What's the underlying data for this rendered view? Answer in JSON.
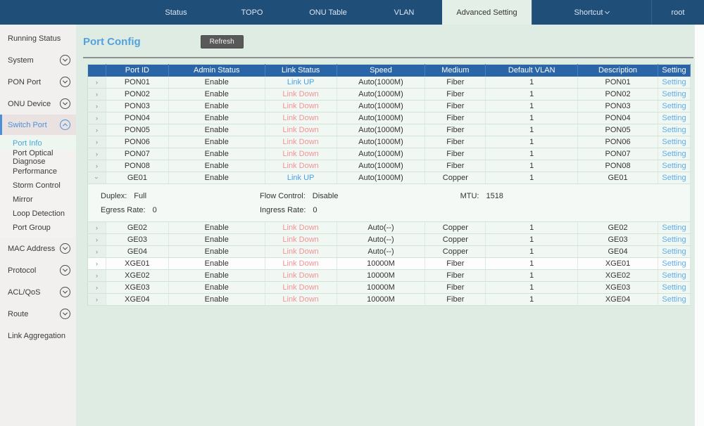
{
  "nav": {
    "tabs": [
      {
        "label": "Status",
        "active": false
      },
      {
        "label": "TOPO",
        "active": false
      },
      {
        "label": "ONU Table",
        "active": false
      },
      {
        "label": "VLAN",
        "active": false
      },
      {
        "label": "Advanced Setting",
        "active": true
      },
      {
        "label": "Shortcut",
        "active": false,
        "has_dropdown": true
      },
      {
        "label": "root",
        "active": false
      }
    ]
  },
  "sidebar": {
    "items": [
      {
        "label": "Running Status",
        "expandable": false
      },
      {
        "label": "System",
        "expandable": true
      },
      {
        "label": "PON Port",
        "expandable": true
      },
      {
        "label": "ONU Device",
        "expandable": true
      },
      {
        "label": "Switch Port",
        "expandable": true,
        "expanded": true,
        "active": true,
        "children": [
          {
            "label": "Port Info",
            "active": true
          },
          {
            "label": "Port Optical Diagnose",
            "active": false
          },
          {
            "label": "Performance",
            "active": false
          },
          {
            "label": "Storm Control",
            "active": false
          },
          {
            "label": "Mirror",
            "active": false
          },
          {
            "label": "Loop Detection",
            "active": false
          },
          {
            "label": "Port Group",
            "active": false
          }
        ]
      },
      {
        "label": "MAC Address",
        "expandable": true
      },
      {
        "label": "Protocol",
        "expandable": true
      },
      {
        "label": "ACL/QoS",
        "expandable": true
      },
      {
        "label": "Route",
        "expandable": true
      },
      {
        "label": "Link Aggregation",
        "expandable": false
      }
    ]
  },
  "main": {
    "title": "Port Config",
    "refresh_label": "Refresh",
    "table": {
      "headers": [
        "",
        "Port ID",
        "Admin Status",
        "Link Status",
        "Speed",
        "Medium",
        "Default VLAN",
        "Description",
        "Setting"
      ],
      "setting_label": "Setting",
      "rows": [
        {
          "port_id": "PON01",
          "admin": "Enable",
          "link": "Link UP",
          "link_state": "up",
          "speed": "Auto(1000M)",
          "medium": "Fiber",
          "vlan": "1",
          "desc": "PON01",
          "expanded": false,
          "highlighted": false
        },
        {
          "port_id": "PON02",
          "admin": "Enable",
          "link": "Link Down",
          "link_state": "down",
          "speed": "Auto(1000M)",
          "medium": "Fiber",
          "vlan": "1",
          "desc": "PON02",
          "expanded": false,
          "highlighted": false
        },
        {
          "port_id": "PON03",
          "admin": "Enable",
          "link": "Link Down",
          "link_state": "down",
          "speed": "Auto(1000M)",
          "medium": "Fiber",
          "vlan": "1",
          "desc": "PON03",
          "expanded": false,
          "highlighted": false
        },
        {
          "port_id": "PON04",
          "admin": "Enable",
          "link": "Link Down",
          "link_state": "down",
          "speed": "Auto(1000M)",
          "medium": "Fiber",
          "vlan": "1",
          "desc": "PON04",
          "expanded": false,
          "highlighted": false
        },
        {
          "port_id": "PON05",
          "admin": "Enable",
          "link": "Link Down",
          "link_state": "down",
          "speed": "Auto(1000M)",
          "medium": "Fiber",
          "vlan": "1",
          "desc": "PON05",
          "expanded": false,
          "highlighted": false
        },
        {
          "port_id": "PON06",
          "admin": "Enable",
          "link": "Link Down",
          "link_state": "down",
          "speed": "Auto(1000M)",
          "medium": "Fiber",
          "vlan": "1",
          "desc": "PON06",
          "expanded": false,
          "highlighted": false
        },
        {
          "port_id": "PON07",
          "admin": "Enable",
          "link": "Link Down",
          "link_state": "down",
          "speed": "Auto(1000M)",
          "medium": "Fiber",
          "vlan": "1",
          "desc": "PON07",
          "expanded": false,
          "highlighted": false
        },
        {
          "port_id": "PON08",
          "admin": "Enable",
          "link": "Link Down",
          "link_state": "down",
          "speed": "Auto(1000M)",
          "medium": "Fiber",
          "vlan": "1",
          "desc": "PON08",
          "expanded": false,
          "highlighted": false
        },
        {
          "port_id": "GE01",
          "admin": "Enable",
          "link": "Link UP",
          "link_state": "up",
          "speed": "Auto(1000M)",
          "medium": "Copper",
          "vlan": "1",
          "desc": "GE01",
          "expanded": true,
          "highlighted": false
        },
        {
          "port_id": "GE02",
          "admin": "Enable",
          "link": "Link Down",
          "link_state": "down",
          "speed": "Auto(--)",
          "medium": "Copper",
          "vlan": "1",
          "desc": "GE02",
          "expanded": false,
          "highlighted": false
        },
        {
          "port_id": "GE03",
          "admin": "Enable",
          "link": "Link Down",
          "link_state": "down",
          "speed": "Auto(--)",
          "medium": "Copper",
          "vlan": "1",
          "desc": "GE03",
          "expanded": false,
          "highlighted": false
        },
        {
          "port_id": "GE04",
          "admin": "Enable",
          "link": "Link Down",
          "link_state": "down",
          "speed": "Auto(--)",
          "medium": "Copper",
          "vlan": "1",
          "desc": "GE04",
          "expanded": false,
          "highlighted": false
        },
        {
          "port_id": "XGE01",
          "admin": "Enable",
          "link": "Link Down",
          "link_state": "down",
          "speed": "10000M",
          "medium": "Fiber",
          "vlan": "1",
          "desc": "XGE01",
          "expanded": false,
          "highlighted": true
        },
        {
          "port_id": "XGE02",
          "admin": "Enable",
          "link": "Link Down",
          "link_state": "down",
          "speed": "10000M",
          "medium": "Fiber",
          "vlan": "1",
          "desc": "XGE02",
          "expanded": false,
          "highlighted": false
        },
        {
          "port_id": "XGE03",
          "admin": "Enable",
          "link": "Link Down",
          "link_state": "down",
          "speed": "10000M",
          "medium": "Fiber",
          "vlan": "1",
          "desc": "XGE03",
          "expanded": false,
          "highlighted": false
        },
        {
          "port_id": "XGE04",
          "admin": "Enable",
          "link": "Link Down",
          "link_state": "down",
          "speed": "10000M",
          "medium": "Fiber",
          "vlan": "1",
          "desc": "XGE04",
          "expanded": false,
          "highlighted": false
        }
      ],
      "expanded_details": {
        "duplex_label": "Duplex:",
        "duplex": "Full",
        "flow_label": "Flow Control:",
        "flow": "Disable",
        "mtu_label": "MTU:",
        "mtu": "1518",
        "egress_label": "Egress Rate:",
        "egress": "0",
        "ingress_label": "Ingress Rate:",
        "ingress": "0"
      }
    }
  },
  "colors": {
    "nav_bg": "#1f4e79",
    "header_bg": "#2a65a8",
    "link_up": "#4aa0e6",
    "link_down": "#f19494",
    "setting_link": "#5fade8",
    "accent_blue": "#4a90d9"
  }
}
